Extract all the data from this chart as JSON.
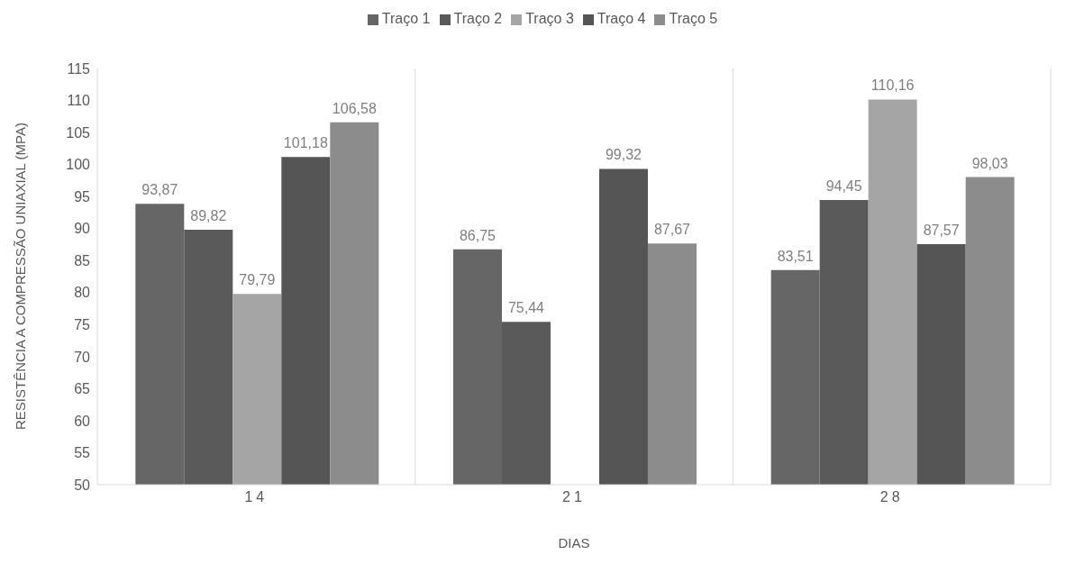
{
  "chart_data": {
    "type": "bar",
    "xlabel": "DIAS",
    "ylabel": "RESISTÊNCIA A COMPRESSÃO UNIAXIAL (MPA)",
    "categories": [
      "14",
      "21",
      "28"
    ],
    "series": [
      {
        "name": "Traço 1",
        "color": "#666666",
        "values": [
          93.87,
          86.75,
          83.51
        ],
        "value_labels": [
          "93,87",
          "86,75",
          "83,51"
        ]
      },
      {
        "name": "Traço 2",
        "color": "#5a5a5a",
        "values": [
          89.82,
          75.44,
          94.45
        ],
        "value_labels": [
          "89,82",
          "75,44",
          "94,45"
        ]
      },
      {
        "name": "Traço 3",
        "color": "#a5a5a5",
        "values": [
          79.79,
          null,
          110.16
        ],
        "value_labels": [
          "79,79",
          null,
          "110,16"
        ]
      },
      {
        "name": "Traço 4",
        "color": "#555555",
        "values": [
          101.18,
          99.32,
          87.57
        ],
        "value_labels": [
          "101,18",
          "99,32",
          "87,57"
        ]
      },
      {
        "name": "Traço 5",
        "color": "#8c8c8c",
        "values": [
          106.58,
          87.67,
          98.03
        ],
        "value_labels": [
          "106,58",
          "87,67",
          "98,03"
        ]
      }
    ],
    "ylim": [
      50,
      115
    ],
    "yticks": [
      50,
      55,
      60,
      65,
      70,
      75,
      80,
      85,
      90,
      95,
      100,
      105,
      110,
      115
    ],
    "grid": "x",
    "legend": "top"
  }
}
